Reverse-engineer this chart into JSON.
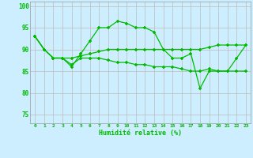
{
  "xlabel": "Humidité relative (%)",
  "background_color": "#cceeff",
  "grid_color": "#bbbbbb",
  "line_color": "#00bb00",
  "xlim": [
    -0.5,
    23.5
  ],
  "ylim": [
    73,
    101
  ],
  "yticks": [
    75,
    80,
    85,
    90,
    95,
    100
  ],
  "xticks": [
    0,
    1,
    2,
    3,
    4,
    5,
    6,
    7,
    8,
    9,
    10,
    11,
    12,
    13,
    14,
    15,
    16,
    17,
    18,
    19,
    20,
    21,
    22,
    23
  ],
  "series1_x": [
    0,
    1,
    2,
    3,
    4,
    5,
    6,
    7,
    8,
    9,
    10,
    11,
    12,
    13,
    14,
    15,
    16,
    17,
    18,
    19,
    20,
    21,
    22,
    23
  ],
  "series1_y": [
    93,
    90,
    88,
    88,
    86,
    89,
    92,
    95,
    95,
    96.5,
    96,
    95,
    95,
    94,
    90,
    88,
    88,
    89,
    81,
    85,
    85,
    85,
    88,
    91
  ],
  "series2_x": [
    0,
    1,
    2,
    3,
    4,
    5,
    6,
    7,
    8,
    9,
    10,
    11,
    12,
    13,
    14,
    15,
    16,
    17,
    18,
    19,
    20,
    21,
    22,
    23
  ],
  "series2_y": [
    93,
    90,
    88,
    88,
    88,
    88.5,
    89,
    89.5,
    90,
    90,
    90,
    90,
    90,
    90,
    90,
    90,
    90,
    90,
    90,
    90.5,
    91,
    91,
    91,
    91
  ],
  "series3_x": [
    0,
    1,
    2,
    3,
    4,
    5,
    6,
    7,
    8,
    9,
    10,
    11,
    12,
    13,
    14,
    15,
    16,
    17,
    18,
    19,
    20,
    21,
    22,
    23
  ],
  "series3_y": [
    93,
    90,
    88,
    88,
    86.5,
    88,
    88,
    88,
    87.5,
    87,
    87,
    86.5,
    86.5,
    86,
    86,
    86,
    85.5,
    85,
    85,
    85.5,
    85,
    85,
    85,
    85
  ]
}
